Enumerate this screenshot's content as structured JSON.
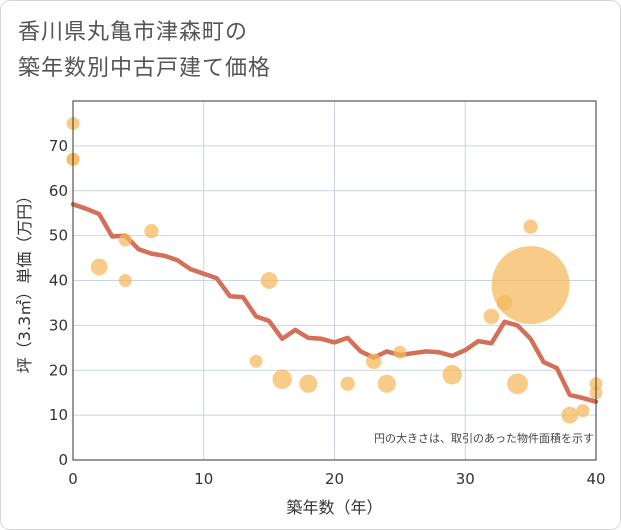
{
  "title": {
    "line1": "香川県丸亀市津森町の",
    "line2": "築年数別中古戸建て価格"
  },
  "chart_data": {
    "type": "scatter",
    "xlabel": "築年数（年）",
    "ylabel": "坪（3.3㎡）単価（万円）",
    "xlim": [
      0,
      40
    ],
    "ylim": [
      0,
      80
    ],
    "xticks": [
      0,
      10,
      20,
      30,
      40
    ],
    "yticks": [
      0,
      10,
      20,
      30,
      40,
      50,
      60,
      70
    ],
    "grid": true,
    "note": "円の大きさは、取引のあった物件面積を示す",
    "colors": {
      "bubble": "#f5b85a",
      "line": "#d2705a",
      "grid": "#c8d4e3",
      "frame": "#333333"
    },
    "points": [
      {
        "x": 0,
        "y": 75,
        "size": 1
      },
      {
        "x": 0,
        "y": 67,
        "size": 1
      },
      {
        "x": 0,
        "y": 67,
        "size": 1
      },
      {
        "x": 2,
        "y": 43,
        "size": 1.3
      },
      {
        "x": 4,
        "y": 49,
        "size": 1
      },
      {
        "x": 4,
        "y": 40,
        "size": 1
      },
      {
        "x": 6,
        "y": 51,
        "size": 1.1
      },
      {
        "x": 14,
        "y": 22,
        "size": 1
      },
      {
        "x": 15,
        "y": 40,
        "size": 1.3
      },
      {
        "x": 16,
        "y": 18,
        "size": 1.5
      },
      {
        "x": 18,
        "y": 17,
        "size": 1.4
      },
      {
        "x": 21,
        "y": 17,
        "size": 1.1
      },
      {
        "x": 23,
        "y": 22,
        "size": 1.2
      },
      {
        "x": 24,
        "y": 17,
        "size": 1.4
      },
      {
        "x": 25,
        "y": 24,
        "size": 1
      },
      {
        "x": 29,
        "y": 19,
        "size": 1.5
      },
      {
        "x": 32,
        "y": 32,
        "size": 1.2
      },
      {
        "x": 33,
        "y": 35,
        "size": 1.2
      },
      {
        "x": 34,
        "y": 17,
        "size": 1.6
      },
      {
        "x": 35,
        "y": 52,
        "size": 1.1
      },
      {
        "x": 35,
        "y": 39,
        "size": 6
      },
      {
        "x": 38,
        "y": 10,
        "size": 1.3
      },
      {
        "x": 39,
        "y": 11,
        "size": 1
      },
      {
        "x": 40,
        "y": 17,
        "size": 1
      },
      {
        "x": 40,
        "y": 15,
        "size": 1
      }
    ],
    "trend": {
      "x": [
        0,
        1,
        2,
        3,
        4,
        5,
        6,
        7,
        8,
        9,
        10,
        11,
        12,
        13,
        14,
        15,
        16,
        17,
        18,
        19,
        20,
        21,
        22,
        23,
        24,
        25,
        26,
        27,
        28,
        29,
        30,
        31,
        32,
        33,
        34,
        35,
        36,
        37,
        38,
        39,
        40
      ],
      "y": [
        57,
        56,
        54.8,
        49.8,
        50,
        47,
        46,
        45.5,
        44.5,
        42.5,
        41.5,
        40.5,
        36.5,
        36.3,
        32,
        31,
        27,
        29,
        27.2,
        27,
        26.2,
        27.2,
        24.2,
        22.8,
        24.2,
        23.4,
        23.8,
        24.2,
        24,
        23.2,
        24.5,
        26.5,
        26,
        30.8,
        30,
        27,
        21.8,
        20.5,
        14.5,
        13.8,
        13
      ]
    }
  }
}
